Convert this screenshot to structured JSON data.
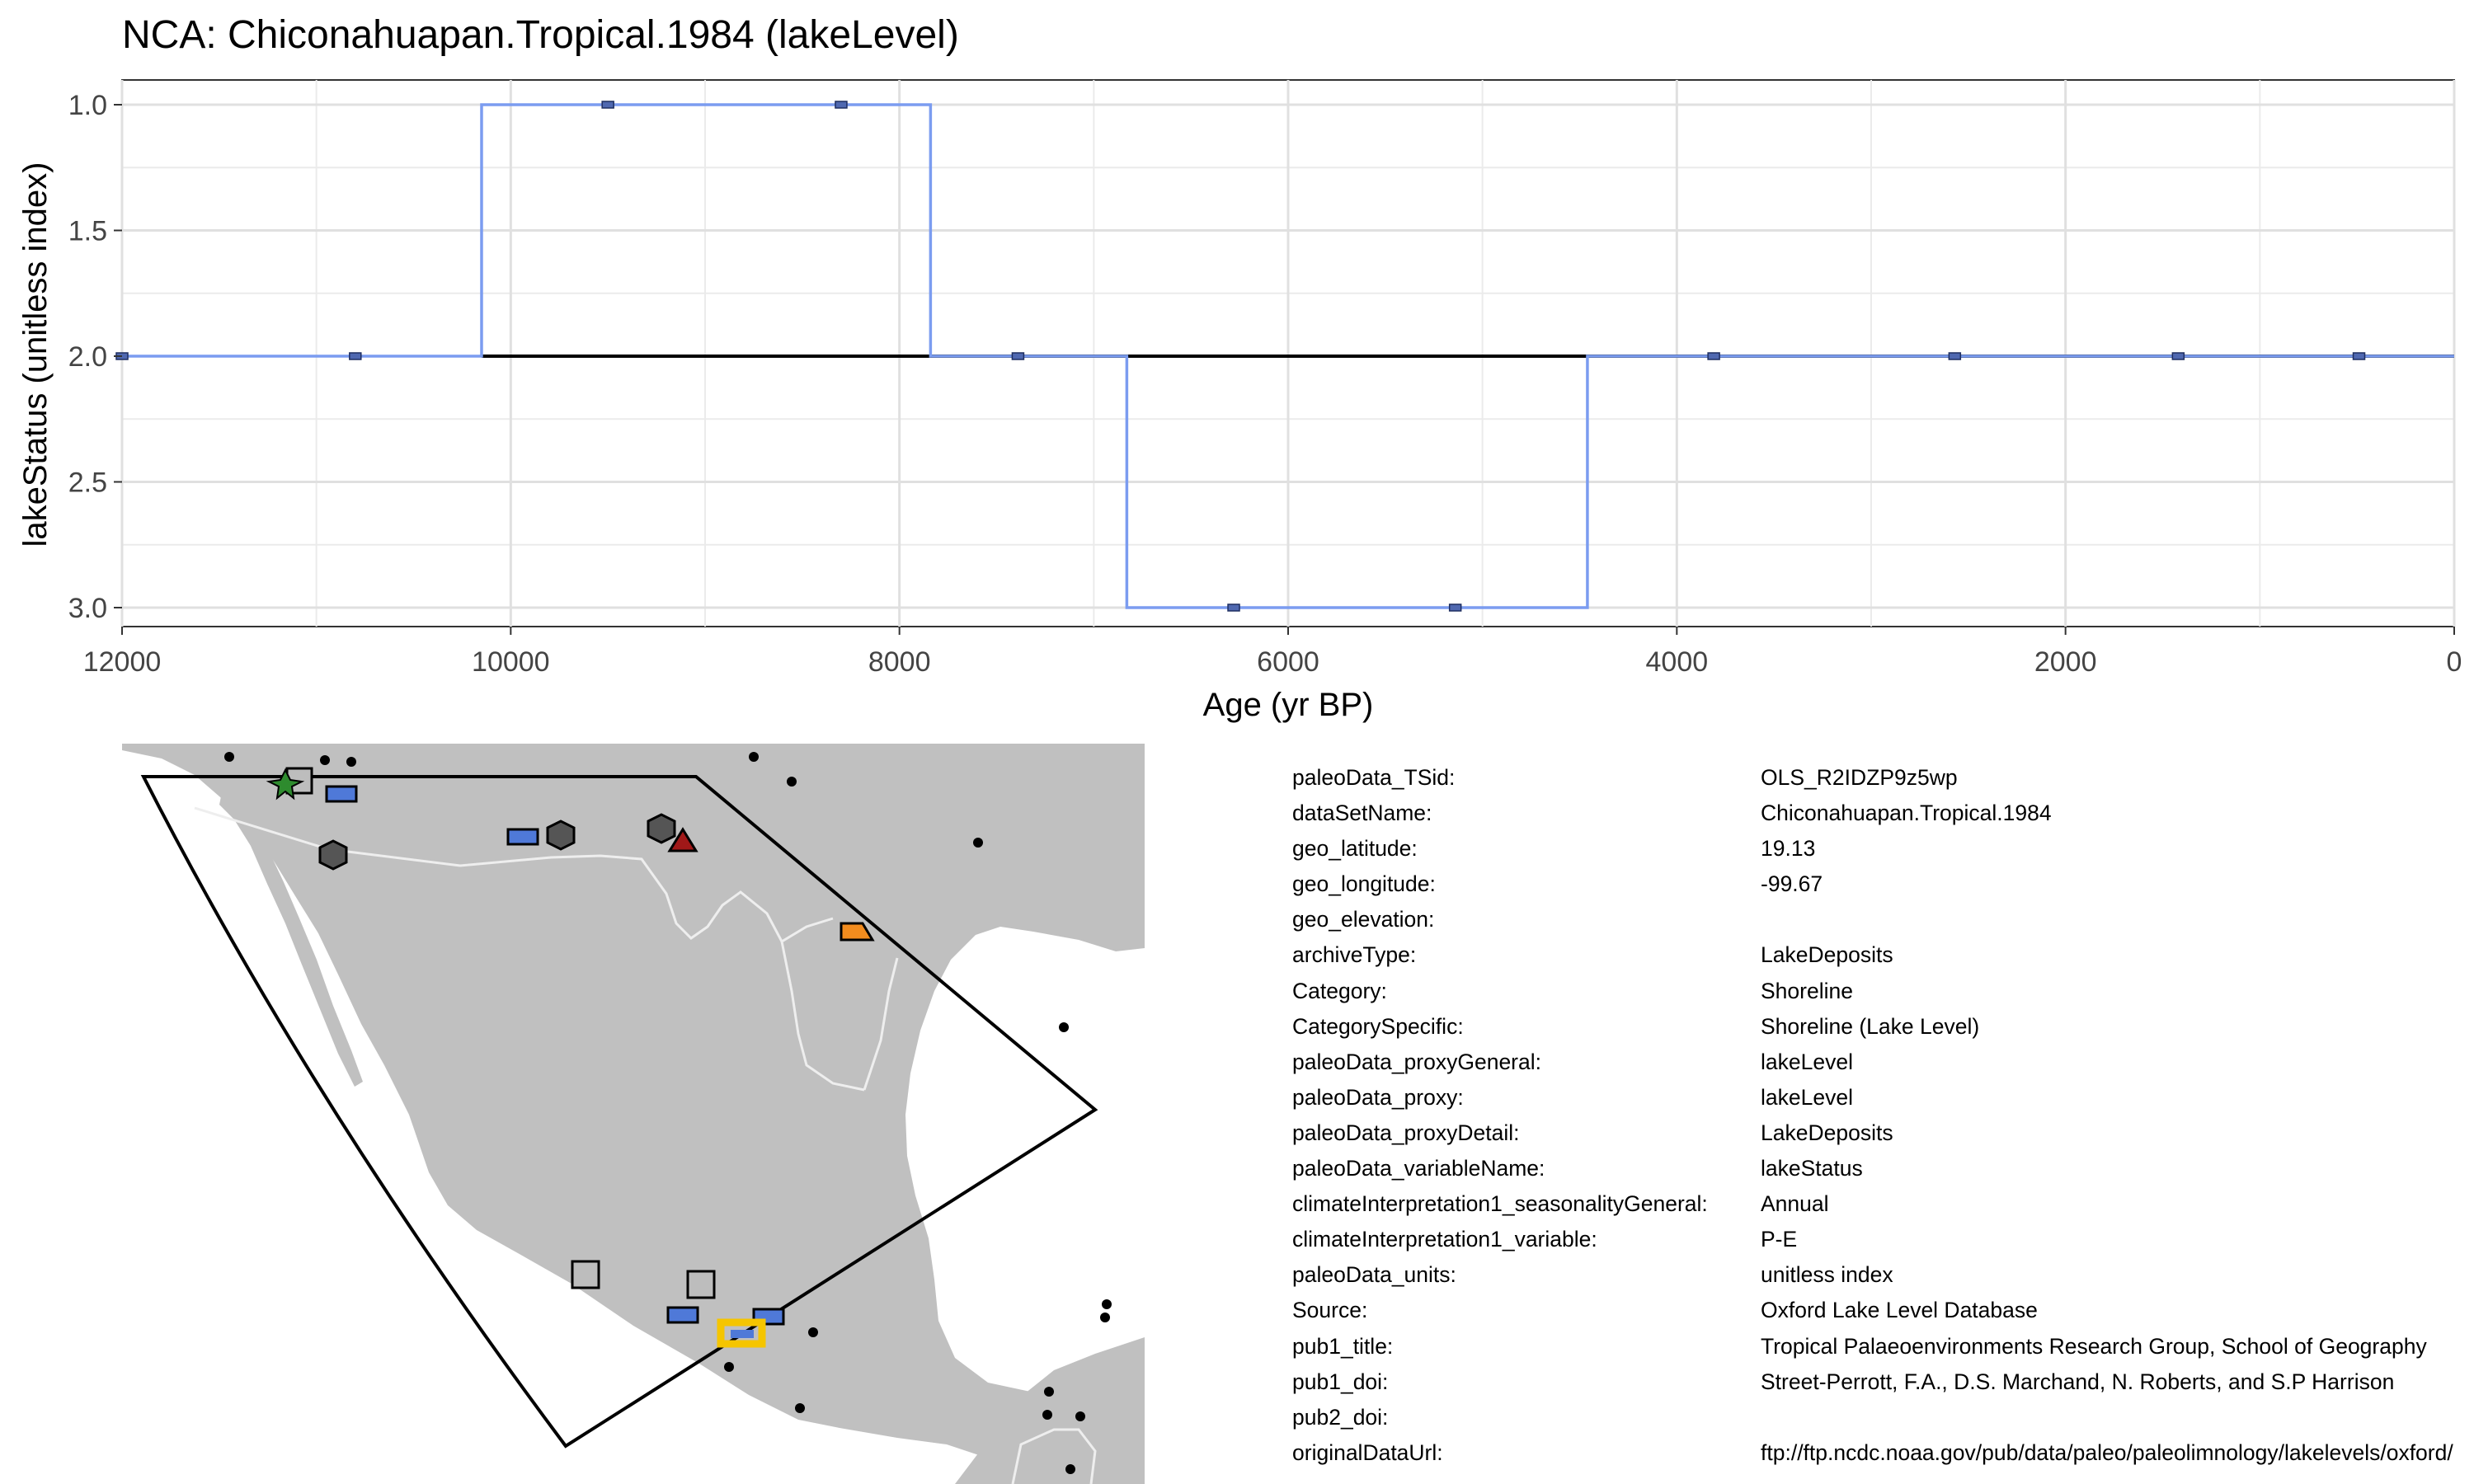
{
  "chart_data": {
    "type": "line",
    "title": "NCA: Chiconahuapan.Tropical.1984 (lakeLevel)",
    "xlabel": "Age (yr BP)",
    "ylabel": "lakeStatus (unitless index)",
    "xlim": [
      12000,
      0
    ],
    "x_reversed": true,
    "ylim": [
      3.0,
      1.0
    ],
    "y_reversed": true,
    "x_ticks": [
      12000,
      10000,
      8000,
      6000,
      4000,
      2000,
      0
    ],
    "x_tick_labels": [
      "12000",
      "10000",
      "8000",
      "6000",
      "4000",
      "2000",
      "0"
    ],
    "y_ticks": [
      1.0,
      1.5,
      2.0,
      2.5,
      3.0
    ],
    "y_tick_labels": [
      "1.0",
      "1.5",
      "2.0",
      "2.5",
      "3.0"
    ],
    "grid": true,
    "step_series": {
      "name": "lakeStatus",
      "color": "#7B9CF0",
      "steps": [
        {
          "x0": 12000,
          "x1": 10150,
          "y": 2.0
        },
        {
          "x0": 10150,
          "x1": 7840,
          "y": 1.0
        },
        {
          "x0": 7840,
          "x1": 6830,
          "y": 2.0
        },
        {
          "x0": 6830,
          "x1": 4460,
          "y": 3.0
        },
        {
          "x0": 4460,
          "x1": 0,
          "y": 2.0
        }
      ]
    },
    "points": {
      "x": [
        12000,
        10800,
        9500,
        8300,
        7390,
        6280,
        5140,
        3810,
        2570,
        1420,
        490
      ],
      "y": [
        2.0,
        2.0,
        1.0,
        1.0,
        2.0,
        3.0,
        3.0,
        2.0,
        2.0,
        2.0,
        2.0
      ]
    },
    "reference_line": {
      "y": 2.0,
      "x_from": 10150,
      "x_to": 0,
      "color": "#000000"
    }
  },
  "map": {
    "land_color": "#C0C0C0",
    "border_color": "#EEEEEE",
    "highlight_color": "#F5C500",
    "markers_blue": "#4F79D8",
    "marker_green": "#2E8B2E",
    "marker_red": "#A01818",
    "marker_orange": "#F28C1E",
    "marker_dark": "#555555",
    "marker_gray": "#BDBDBD"
  },
  "metadata": [
    {
      "key": "paleoData_TSid:",
      "value": "OLS_R2IDZP9z5wp"
    },
    {
      "key": "dataSetName:",
      "value": "Chiconahuapan.Tropical.1984"
    },
    {
      "key": "geo_latitude:",
      "value": "19.13"
    },
    {
      "key": "geo_longitude:",
      "value": "-99.67"
    },
    {
      "key": "geo_elevation:",
      "value": ""
    },
    {
      "key": "archiveType:",
      "value": "LakeDeposits"
    },
    {
      "key": "Category:",
      "value": "Shoreline"
    },
    {
      "key": "CategorySpecific:",
      "value": "Shoreline (Lake Level)"
    },
    {
      "key": "paleoData_proxyGeneral:",
      "value": "lakeLevel"
    },
    {
      "key": "paleoData_proxy:",
      "value": "lakeLevel"
    },
    {
      "key": "paleoData_proxyDetail:",
      "value": "LakeDeposits"
    },
    {
      "key": "paleoData_variableName:",
      "value": "lakeStatus"
    },
    {
      "key": "climateInterpretation1_seasonalityGeneral:",
      "value": "Annual"
    },
    {
      "key": "climateInterpretation1_variable:",
      "value": "P-E"
    },
    {
      "key": "paleoData_units:",
      "value": "unitless index"
    },
    {
      "key": "Source:",
      "value": "Oxford Lake Level Database"
    },
    {
      "key": "pub1_title:",
      "value": "Tropical Palaeoenvironments Research Group, School of Geography"
    },
    {
      "key": "pub1_doi:",
      "value": "Street-Perrott, F.A., D.S. Marchand, N. Roberts, and S.P Harrison"
    },
    {
      "key": "pub2_doi:",
      "value": ""
    },
    {
      "key": "originalDataUrl:",
      "value": "ftp://ftp.ncdc.noaa.gov/pub/data/paleo/paleolimnology/lakelevels/oxford/"
    }
  ]
}
